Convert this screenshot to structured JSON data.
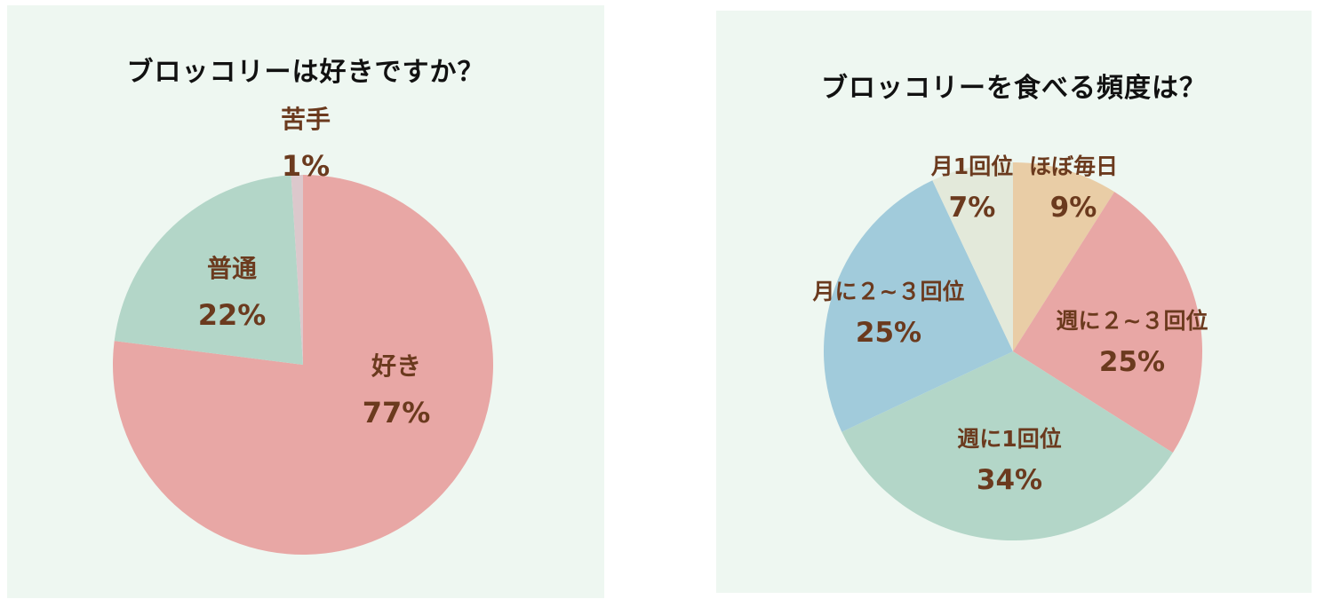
{
  "chart_data": [
    {
      "type": "pie",
      "title": "ブロッコリーは好きですか？",
      "categories": [
        "好き",
        "普通",
        "苦手"
      ],
      "values": [
        77,
        22,
        1
      ],
      "value_labels": [
        "77%",
        "22%",
        "1%"
      ],
      "colors": [
        "#e8a7a5",
        "#b3d6c8",
        "#dcc8cc"
      ],
      "start_angle_deg": 0,
      "direction": "clockwise"
    },
    {
      "type": "pie",
      "title": "ブロッコリーを食べる頻度は？",
      "categories": [
        "ほぼ毎日",
        "週に２~３回位",
        "週に1回位",
        "月に２~３回位",
        "月1回位"
      ],
      "values": [
        9,
        25,
        34,
        25,
        7
      ],
      "value_labels": [
        "9%",
        "25%",
        "34%",
        "25%",
        "7%"
      ],
      "colors": [
        "#e9cda6",
        "#e8a7a5",
        "#b3d6c8",
        "#a1cbdb",
        "#e3e9da"
      ],
      "start_angle_deg": 0,
      "direction": "clockwise"
    }
  ]
}
